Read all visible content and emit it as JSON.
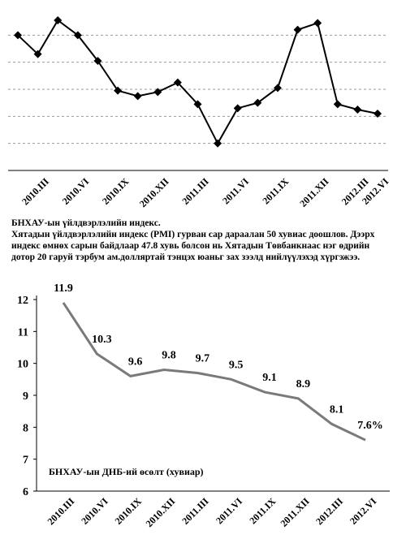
{
  "chart_data": [
    {
      "type": "line",
      "color": "#000000",
      "marker": "diamond",
      "grid": true,
      "categories": [
        null,
        "2010.III",
        null,
        "2010.VI",
        null,
        "2010.IX",
        null,
        "2010.XII",
        null,
        "2011.III",
        null,
        "2011.VI",
        null,
        "2011.IX",
        null,
        "2011.XII",
        null,
        "2012.III",
        "2012.VI"
      ],
      "values": [
        54,
        52.6,
        55.1,
        54,
        52.1,
        49.9,
        49.5,
        49.8,
        50.5,
        48.9,
        46,
        48.6,
        49,
        50.1,
        54.4,
        54.9,
        48.9,
        48.5,
        48.2
      ],
      "ylim": [
        44,
        56
      ],
      "yticks": [
        46,
        48,
        50,
        52,
        54
      ]
    },
    {
      "type": "line",
      "color": "#7a7a7a",
      "title": "БНХАУ-ын ДНБ-ий өсөлт (хувиар)",
      "categories": [
        "2010.III",
        "2010.VI",
        "2010.IX",
        "2010.XII",
        "2011.III",
        "2011.VI",
        "2011.IX",
        "2011.XII",
        "2012.III",
        "2012.VI"
      ],
      "values": [
        11.9,
        10.3,
        9.6,
        9.8,
        9.7,
        9.5,
        9.1,
        8.9,
        8.1,
        7.6
      ],
      "value_labels": [
        "11.9",
        "10.3",
        "9.6",
        "9.8",
        "9.7",
        "9.5",
        "9.1",
        "8.9",
        "8.1",
        "7.6%"
      ],
      "ylim": [
        6,
        12
      ],
      "yticks": [
        6,
        7,
        8,
        9,
        10,
        11,
        12
      ]
    }
  ],
  "caption": {
    "title": "БНХАУ-ын үйлдвэрлэлийн индекс.",
    "text": "Хятадын үйлдвэрлэлийн индекс (PMI) гурван сар дараалан 50 хувиас доошлов.  Дээрх индекс өмнөх сарын байдлаар 47.8 хувь болсон нь Хятадын Төвбанкнаас нэг өдрийн дотор 20 гаруй тэрбум ам.долляртай тэнцэх юаньг зах зээлд нийлүүлэхэд хүргэжээ."
  }
}
